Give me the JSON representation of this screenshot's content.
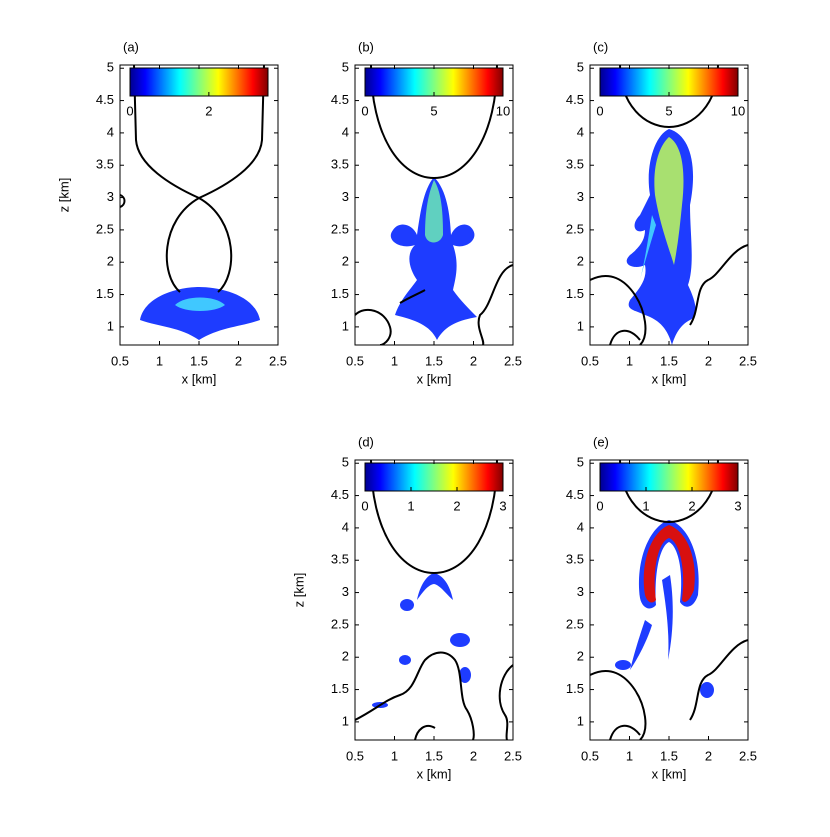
{
  "chart_data": [
    {
      "type": "heatmap",
      "panel": "(a)",
      "xlabel": "x [km]",
      "ylabel": "z [km]",
      "xlim": [
        0.5,
        2.5
      ],
      "ylim": [
        0.72,
        5.05
      ],
      "xticks": [
        0.5,
        1,
        1.5,
        2,
        2.5
      ],
      "yticks": [
        1,
        1.5,
        2,
        2.5,
        3,
        3.5,
        4,
        4.5,
        5
      ],
      "colorbar": {
        "colormap": "jet",
        "lim": [
          0,
          3.5
        ],
        "ticks": [
          0,
          2
        ]
      }
    },
    {
      "type": "heatmap",
      "panel": "(b)",
      "xlabel": "x [km]",
      "xlim": [
        0.5,
        2.5
      ],
      "ylim": [
        0.72,
        5.05
      ],
      "xticks": [
        0.5,
        1,
        1.5,
        2,
        2.5
      ],
      "yticks": [
        1,
        1.5,
        2,
        2.5,
        3,
        3.5,
        4,
        4.5,
        5
      ],
      "colorbar": {
        "colormap": "jet",
        "lim": [
          0,
          10
        ],
        "ticks": [
          0,
          5,
          10
        ]
      }
    },
    {
      "type": "heatmap",
      "panel": "(c)",
      "xlabel": "x [km]",
      "xlim": [
        0.5,
        2.5
      ],
      "ylim": [
        0.72,
        5.05
      ],
      "xticks": [
        0.5,
        1,
        1.5,
        2,
        2.5
      ],
      "yticks": [
        1,
        1.5,
        2,
        2.5,
        3,
        3.5,
        4,
        4.5,
        5
      ],
      "colorbar": {
        "colormap": "jet",
        "lim": [
          0,
          10
        ],
        "ticks": [
          0,
          5,
          10
        ]
      }
    },
    {
      "type": "heatmap",
      "panel": "(d)",
      "xlabel": "x [km]",
      "ylabel": "z [km]",
      "xlim": [
        0.5,
        2.5
      ],
      "ylim": [
        0.72,
        5.05
      ],
      "xticks": [
        0.5,
        1,
        1.5,
        2,
        2.5
      ],
      "yticks": [
        1,
        1.5,
        2,
        2.5,
        3,
        3.5,
        4,
        4.5,
        5
      ],
      "colorbar": {
        "colormap": "jet",
        "lim": [
          0,
          3
        ],
        "ticks": [
          0,
          1,
          2,
          3
        ]
      }
    },
    {
      "type": "heatmap",
      "panel": "(e)",
      "xlabel": "x [km]",
      "xlim": [
        0.5,
        2.5
      ],
      "ylim": [
        0.72,
        5.05
      ],
      "xticks": [
        0.5,
        1,
        1.5,
        2,
        2.5
      ],
      "yticks": [
        1,
        1.5,
        2,
        2.5,
        3,
        3.5,
        4,
        4.5,
        5
      ],
      "colorbar": {
        "colormap": "jet",
        "lim": [
          0,
          3
        ],
        "ticks": [
          0,
          1,
          2,
          3
        ]
      }
    }
  ]
}
